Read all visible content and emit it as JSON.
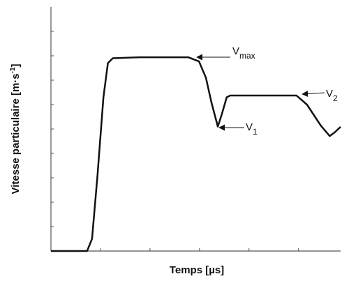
{
  "chart_data": {
    "type": "line",
    "xlabel": "Temps [µs]",
    "ylabel": {
      "text": "Vitesse particulaire [m·s",
      "superscript": "-1",
      "suffix": "]"
    },
    "xlim": [
      0,
      5.85
    ],
    "ylim": [
      0,
      10
    ],
    "xticks": [
      1,
      2,
      3,
      4,
      5
    ],
    "yticks": [
      1,
      2,
      3,
      4,
      5,
      6,
      7,
      8,
      9
    ],
    "color": "#111111",
    "x": [
      0,
      0.73,
      0.83,
      0.94,
      1.06,
      1.15,
      1.25,
      1.79,
      2.77,
      2.99,
      3.13,
      3.24,
      3.37,
      3.45,
      3.55,
      3.62,
      4.61,
      4.96,
      5.17,
      5.45,
      5.63,
      5.73,
      5.85
    ],
    "values": [
      0,
      0,
      0.5,
      3.1,
      6.3,
      7.7,
      7.9,
      7.94,
      7.94,
      7.77,
      7.1,
      6.1,
      5.1,
      5.6,
      6.3,
      6.37,
      6.37,
      6.37,
      6.0,
      5.14,
      4.71,
      4.86,
      5.09
    ],
    "annotations": [
      {
        "text": "V",
        "subscript": "max"
      },
      {
        "text": "V",
        "subscript": "1"
      },
      {
        "text": "V",
        "subscript": "2"
      }
    ]
  }
}
